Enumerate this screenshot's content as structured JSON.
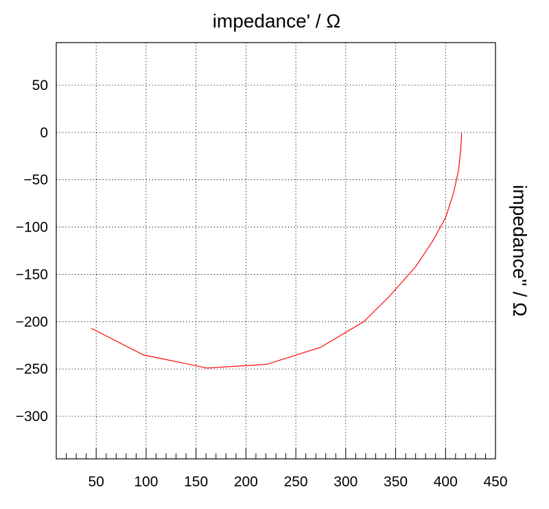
{
  "chart_data": {
    "type": "line",
    "title": "",
    "xlabel": "impedance' / Ω",
    "ylabel": "impedance'' / Ω",
    "xlim": [
      10,
      450
    ],
    "ylim": [
      -345,
      95
    ],
    "xticks": [
      50,
      100,
      150,
      200,
      250,
      300,
      350,
      400,
      450
    ],
    "yticks": [
      50,
      0,
      -50,
      -100,
      -150,
      -200,
      -250,
      -300
    ],
    "xtick_labels": [
      "50",
      "100",
      "150",
      "200",
      "250",
      "300",
      "350",
      "400",
      "450"
    ],
    "ytick_labels": [
      "50",
      "0",
      "−50",
      "−100",
      "−150",
      "−200",
      "−250",
      "−300"
    ],
    "grid": true,
    "series": [
      {
        "color": "#ff0000",
        "x": [
          45,
          97,
          161,
          221,
          275,
          318,
          343,
          370,
          387,
          400,
          408,
          413,
          415,
          416,
          416
        ],
        "y": [
          -207,
          -235,
          -249,
          -245,
          -227,
          -200,
          -174,
          -142,
          -115,
          -90,
          -64,
          -40,
          -20,
          -5,
          0
        ]
      }
    ]
  }
}
